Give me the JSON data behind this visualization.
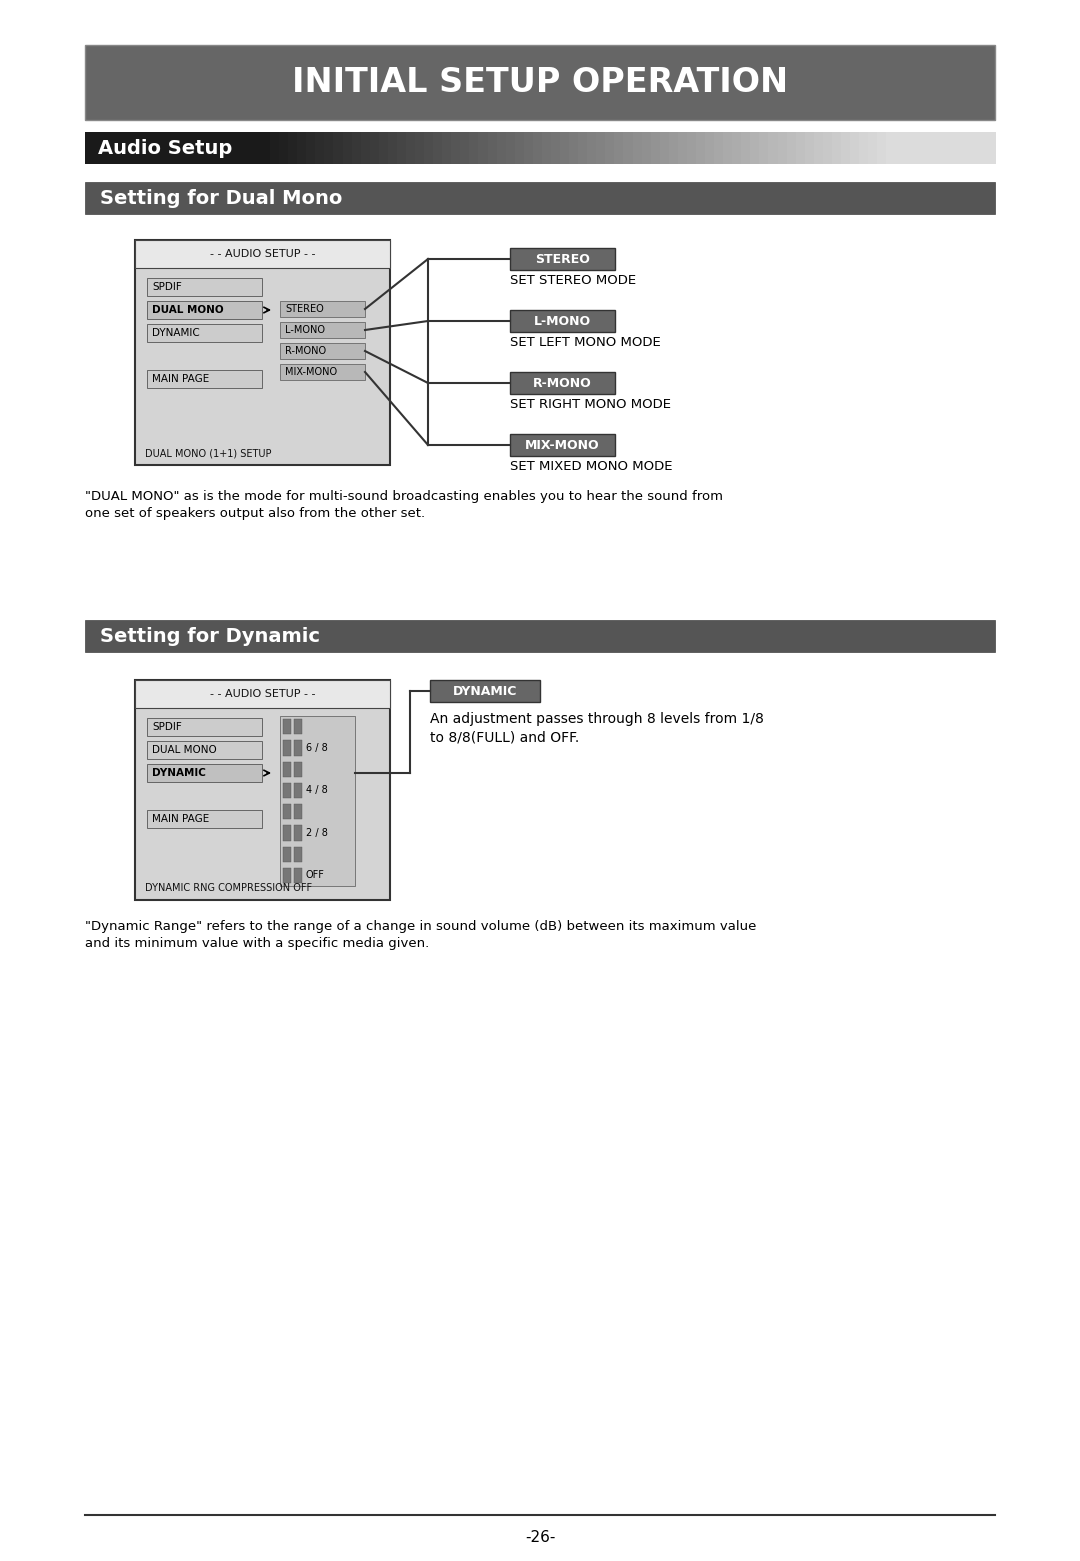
{
  "bg_color": "#ffffff",
  "title_bar_color": "#666666",
  "title_text": "INITIAL SETUP OPERATION",
  "title_text_color": "#ffffff",
  "title_fontsize": 24,
  "audio_setup_text": "Audio Setup",
  "audio_setup_fontsize": 14,
  "dual_mono_bar_color": "#555555",
  "dual_mono_text": "Setting for Dual Mono",
  "dual_mono_fontsize": 14,
  "dynamic_bar_color": "#555555",
  "dynamic_text": "Setting for Dynamic",
  "dynamic_fontsize": 14,
  "menu_bg_color": "#d4d4d4",
  "menu_header_text": "- - AUDIO SETUP - -",
  "menu_items_dual": [
    "SPDIF",
    "DUAL MONO",
    "DYNAMIC",
    "MAIN PAGE"
  ],
  "menu_sub_items": [
    "STEREO",
    "L-MONO",
    "R-MONO",
    "MIX-MONO"
  ],
  "menu_footer_dual": "DUAL MONO (1+1) SETUP",
  "label_boxes": [
    {
      "text": "STEREO",
      "color": "#666666"
    },
    {
      "text": "L-MONO",
      "color": "#666666"
    },
    {
      "text": "R-MONO",
      "color": "#666666"
    },
    {
      "text": "MIX-MONO",
      "color": "#666666"
    }
  ],
  "label_descriptions": [
    "SET STEREO MODE",
    "SET LEFT MONO MODE",
    "SET RIGHT MONO MODE",
    "SET MIXED MONO MODE"
  ],
  "dual_mono_desc": "\"DUAL MONO\" as is the mode for multi-sound broadcasting enables you to hear the sound from\none set of speakers output also from the other set.",
  "dynamic_desc": "\"Dynamic Range\" refers to the range of a change in sound volume (dB) between its maximum value\nand its minimum value with a specific media given.",
  "dynamic_sub_items": [
    "6 / 8",
    "4 / 8",
    "2 / 8",
    "OFF"
  ],
  "dynamic_label": "DYNAMIC",
  "dynamic_label_color": "#666666",
  "dynamic_label_desc": "An adjustment passes through 8 levels from 1/8\nto 8/8(FULL) and OFF.",
  "dynamic_footer": "DYNAMIC RNG COMPRESSION OFF",
  "page_number": "-26-"
}
